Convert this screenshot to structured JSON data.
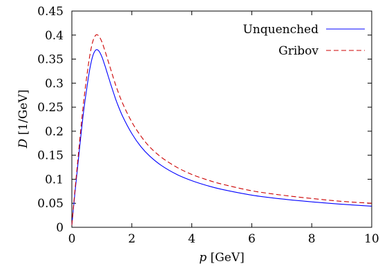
{
  "chart_data": {
    "type": "line",
    "xlabel": {
      "var": "p",
      "unit": " [GeV]"
    },
    "ylabel": {
      "var": "D",
      "unit": " [1/GeV]"
    },
    "xlim": [
      0,
      10
    ],
    "ylim": [
      0,
      0.45
    ],
    "xticks": [
      "0",
      "2",
      "4",
      "6",
      "8",
      "10"
    ],
    "yticks": [
      "0",
      "0.05",
      "0.1",
      "0.15",
      "0.2",
      "0.25",
      "0.3",
      "0.35",
      "0.4",
      "0.45"
    ],
    "grid": false,
    "legend_position": "top-right",
    "series": [
      {
        "name": "Unquenched",
        "color": "#0000ff",
        "dash": "solid",
        "x": [
          0,
          0.1,
          0.2,
          0.3,
          0.4,
          0.5,
          0.6,
          0.7,
          0.8,
          0.9,
          1.0,
          1.1,
          1.2,
          1.3,
          1.4,
          1.5,
          1.7,
          2.0,
          2.3,
          2.6,
          3.0,
          3.5,
          4.0,
          4.5,
          5.0,
          6.0,
          7.0,
          8.0,
          9.0,
          10.0
        ],
        "y": [
          0.005,
          0.07,
          0.13,
          0.19,
          0.245,
          0.29,
          0.33,
          0.357,
          0.369,
          0.367,
          0.355,
          0.337,
          0.317,
          0.297,
          0.278,
          0.26,
          0.23,
          0.195,
          0.168,
          0.148,
          0.128,
          0.11,
          0.097,
          0.087,
          0.079,
          0.067,
          0.059,
          0.053,
          0.048,
          0.044
        ]
      },
      {
        "name": "Gribov",
        "color": "#cc0000",
        "dash": "dashed",
        "x": [
          0,
          0.1,
          0.2,
          0.3,
          0.4,
          0.5,
          0.6,
          0.7,
          0.8,
          0.9,
          1.0,
          1.1,
          1.2,
          1.3,
          1.4,
          1.5,
          1.7,
          2.0,
          2.3,
          2.6,
          3.0,
          3.5,
          4.0,
          4.5,
          5.0,
          6.0,
          7.0,
          8.0,
          9.0,
          10.0
        ],
        "y": [
          0.005,
          0.075,
          0.14,
          0.205,
          0.265,
          0.315,
          0.358,
          0.387,
          0.4,
          0.398,
          0.386,
          0.368,
          0.348,
          0.328,
          0.308,
          0.289,
          0.257,
          0.219,
          0.19,
          0.167,
          0.145,
          0.125,
          0.11,
          0.099,
          0.09,
          0.076,
          0.067,
          0.06,
          0.054,
          0.05
        ]
      }
    ]
  }
}
